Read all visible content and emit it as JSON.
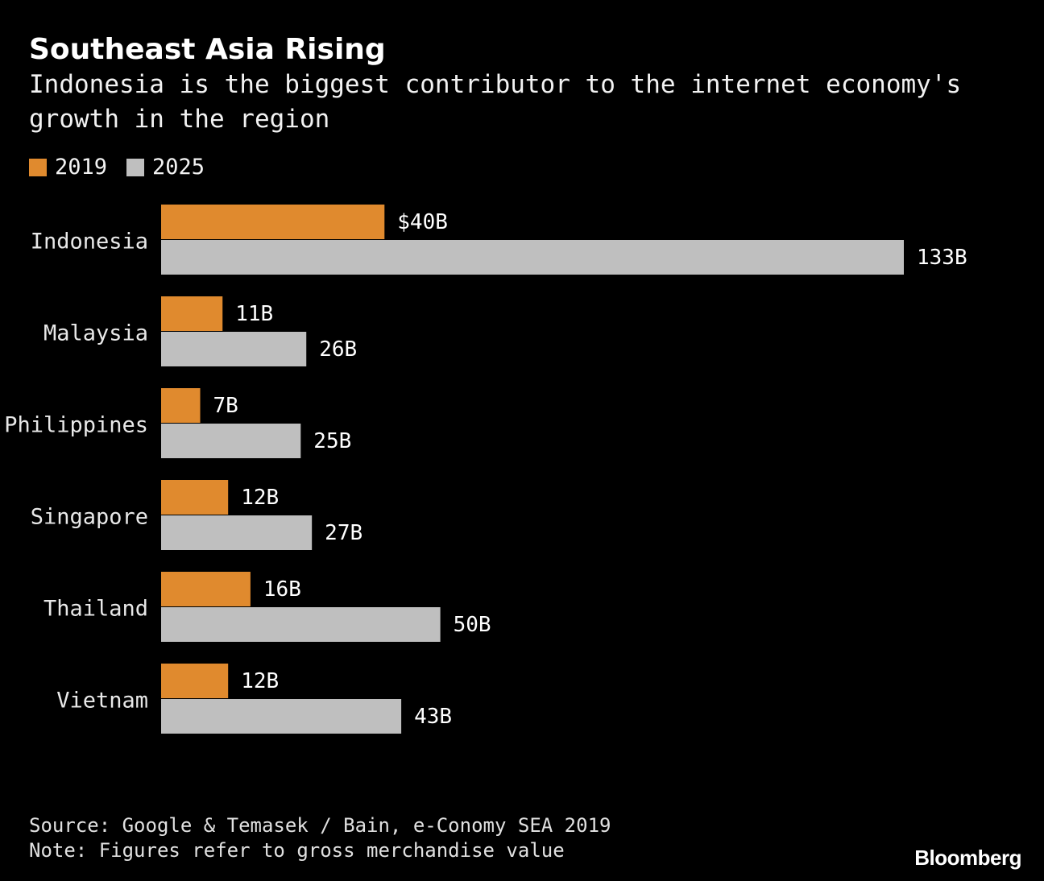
{
  "header": {
    "title": "Southeast Asia Rising",
    "subtitle": "Indonesia is the biggest contributor to the internet economy's growth in the region"
  },
  "legend": {
    "items": [
      {
        "label": "2019",
        "color": "#e08a2e"
      },
      {
        "label": "2025",
        "color": "#bfbfbf"
      }
    ]
  },
  "chart_data": {
    "type": "bar",
    "orientation": "horizontal",
    "categories": [
      "Indonesia",
      "Malaysia",
      "Philippines",
      "Singapore",
      "Thailand",
      "Vietnam"
    ],
    "series": [
      {
        "name": "2019",
        "color": "#e08a2e",
        "values": [
          40,
          11,
          7,
          12,
          16,
          12
        ],
        "labels": [
          "$40B",
          "11B",
          "7B",
          "12B",
          "16B",
          "12B"
        ]
      },
      {
        "name": "2025",
        "color": "#bfbfbf",
        "values": [
          133,
          26,
          25,
          27,
          50,
          43
        ],
        "labels": [
          "133B",
          "26B",
          "25B",
          "27B",
          "50B",
          "43B"
        ]
      }
    ],
    "xlim": [
      0,
      133
    ],
    "grid": false,
    "legend_position": "top-left"
  },
  "footer": {
    "source": "Source: Google & Temasek / Bain, e-Conomy SEA 2019",
    "note": "Note: Figures refer to gross merchandise value"
  },
  "brand": "Bloomberg"
}
